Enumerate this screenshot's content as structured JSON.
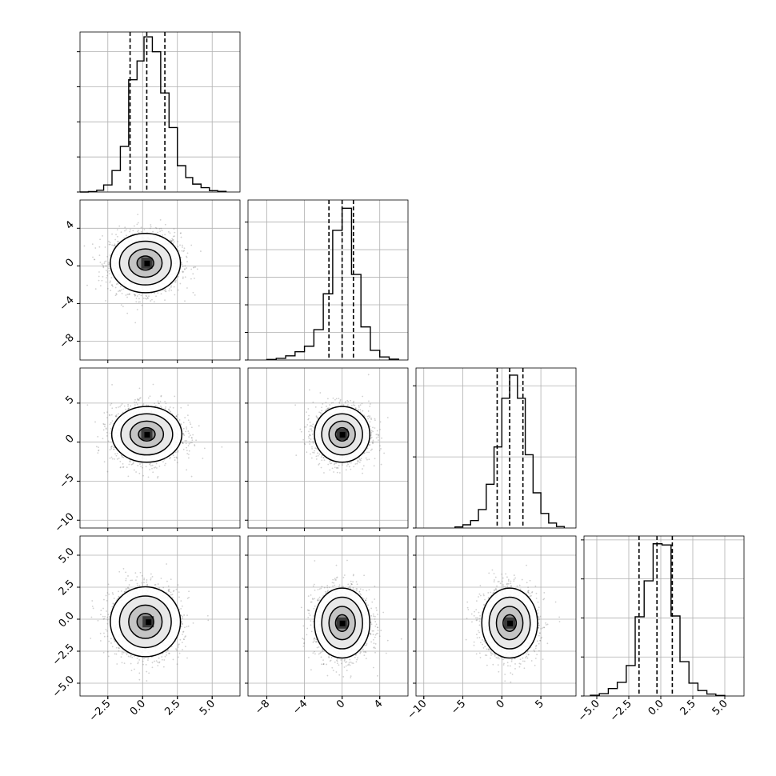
{
  "chart_data": {
    "type": "corner",
    "title": "",
    "grid": true,
    "quantile_lines": [
      0.16,
      0.5,
      0.84
    ],
    "params": [
      {
        "range": [
          -4.5,
          7.0
        ],
        "ticks": [
          -2.5,
          0.0,
          2.5,
          5.0
        ],
        "tick_labels": [
          "−2.5",
          "0.0",
          "2.5",
          "5.0"
        ],
        "quantiles": [
          -0.9,
          0.3,
          1.6
        ],
        "hist_max": 3650,
        "hist_yticks": [
          0,
          800,
          1600,
          2400,
          3200
        ],
        "hist": [
          {
            "x0": -4.5,
            "x1": -3.9,
            "count": 0
          },
          {
            "x0": -3.9,
            "x1": -3.3,
            "count": 10
          },
          {
            "x0": -3.3,
            "x1": -2.8,
            "count": 40
          },
          {
            "x0": -2.8,
            "x1": -2.2,
            "count": 160
          },
          {
            "x0": -2.2,
            "x1": -1.6,
            "count": 490
          },
          {
            "x0": -1.6,
            "x1": -1.0,
            "count": 1040
          },
          {
            "x0": -1.0,
            "x1": -0.4,
            "count": 2560
          },
          {
            "x0": -0.4,
            "x1": 0.1,
            "count": 2990
          },
          {
            "x0": 0.1,
            "x1": 0.7,
            "count": 3540
          },
          {
            "x0": 0.7,
            "x1": 1.3,
            "count": 3200
          },
          {
            "x0": 1.3,
            "x1": 1.9,
            "count": 2260
          },
          {
            "x0": 1.9,
            "x1": 2.5,
            "count": 1470
          },
          {
            "x0": 2.5,
            "x1": 3.1,
            "count": 600
          },
          {
            "x0": 3.1,
            "x1": 3.6,
            "count": 330
          },
          {
            "x0": 3.6,
            "x1": 4.2,
            "count": 180
          },
          {
            "x0": 4.2,
            "x1": 4.8,
            "count": 100
          },
          {
            "x0": 4.8,
            "x1": 5.4,
            "count": 30
          },
          {
            "x0": 5.4,
            "x1": 6.0,
            "count": 15
          }
        ]
      },
      {
        "range": [
          -10.0,
          7.0
        ],
        "ticks": [
          -8,
          -4,
          0,
          4
        ],
        "tick_labels": [
          "−8",
          "−4",
          "0",
          "4"
        ],
        "quantiles": [
          -1.4,
          0.0,
          1.2
        ],
        "hist_max": 5800,
        "hist_yticks": [
          0,
          1000,
          2000,
          3000,
          4000,
          5000
        ],
        "hist": [
          {
            "x0": -8.0,
            "x1": -7.0,
            "count": 20
          },
          {
            "x0": -7.0,
            "x1": -6.0,
            "count": 60
          },
          {
            "x0": -6.0,
            "x1": -5.0,
            "count": 150
          },
          {
            "x0": -5.0,
            "x1": -4.0,
            "count": 300
          },
          {
            "x0": -4.0,
            "x1": -3.0,
            "count": 500
          },
          {
            "x0": -3.0,
            "x1": -2.0,
            "count": 1100
          },
          {
            "x0": -2.0,
            "x1": -1.0,
            "count": 2400
          },
          {
            "x0": -1.0,
            "x1": 0.0,
            "count": 4700
          },
          {
            "x0": 0.0,
            "x1": 1.0,
            "count": 5500
          },
          {
            "x0": 1.0,
            "x1": 2.0,
            "count": 3100
          },
          {
            "x0": 2.0,
            "x1": 3.0,
            "count": 1200
          },
          {
            "x0": 3.0,
            "x1": 4.0,
            "count": 350
          },
          {
            "x0": 4.0,
            "x1": 5.0,
            "count": 110
          },
          {
            "x0": 5.0,
            "x1": 6.0,
            "count": 30
          }
        ]
      },
      {
        "range": [
          -11.0,
          9.5
        ],
        "ticks": [
          -10,
          -5,
          0,
          5
        ],
        "tick_labels": [
          "−10",
          "−5",
          "0",
          "5"
        ],
        "quantiles": [
          -0.6,
          1.0,
          2.7
        ],
        "hist_max": 4500,
        "hist_yticks": [
          0,
          2000,
          4000
        ],
        "hist": [
          {
            "x0": -6.0,
            "x1": -5.0,
            "count": 30
          },
          {
            "x0": -5.0,
            "x1": -4.0,
            "count": 90
          },
          {
            "x0": -4.0,
            "x1": -3.0,
            "count": 210
          },
          {
            "x0": -3.0,
            "x1": -2.0,
            "count": 520
          },
          {
            "x0": -2.0,
            "x1": -1.0,
            "count": 1230
          },
          {
            "x0": -1.0,
            "x1": 0.0,
            "count": 2280
          },
          {
            "x0": 0.0,
            "x1": 1.0,
            "count": 3650
          },
          {
            "x0": 1.0,
            "x1": 2.0,
            "count": 4300
          },
          {
            "x0": 2.0,
            "x1": 3.0,
            "count": 3650
          },
          {
            "x0": 3.0,
            "x1": 4.0,
            "count": 2060
          },
          {
            "x0": 4.0,
            "x1": 5.0,
            "count": 990
          },
          {
            "x0": 5.0,
            "x1": 6.0,
            "count": 410
          },
          {
            "x0": 6.0,
            "x1": 7.0,
            "count": 140
          },
          {
            "x0": 7.0,
            "x1": 8.0,
            "count": 40
          }
        ]
      },
      {
        "range": [
          -6.0,
          6.5
        ],
        "ticks": [
          -5.0,
          -2.5,
          0.0,
          2.5,
          5.0
        ],
        "tick_labels": [
          "−5.0",
          "−2.5",
          "0.0",
          "2.5",
          "5.0"
        ],
        "quantiles": [
          -1.7,
          -0.3,
          0.9
        ],
        "hist_max": 4100,
        "hist_yticks": [
          0,
          1000,
          2000,
          3000,
          4000
        ],
        "hist": [
          {
            "x0": -5.5,
            "x1": -4.8,
            "count": 20
          },
          {
            "x0": -4.8,
            "x1": -4.1,
            "count": 60
          },
          {
            "x0": -4.1,
            "x1": -3.4,
            "count": 190
          },
          {
            "x0": -3.4,
            "x1": -2.7,
            "count": 350
          },
          {
            "x0": -2.7,
            "x1": -2.0,
            "count": 780
          },
          {
            "x0": -2.0,
            "x1": -1.3,
            "count": 2030
          },
          {
            "x0": -1.3,
            "x1": -0.6,
            "count": 2950
          },
          {
            "x0": -0.6,
            "x1": 0.1,
            "count": 3900
          },
          {
            "x0": 0.1,
            "x1": 0.8,
            "count": 3870
          },
          {
            "x0": 0.8,
            "x1": 1.5,
            "count": 2050
          },
          {
            "x0": 1.5,
            "x1": 2.2,
            "count": 880
          },
          {
            "x0": 2.2,
            "x1": 2.9,
            "count": 330
          },
          {
            "x0": 2.9,
            "x1": 3.6,
            "count": 140
          },
          {
            "x0": 3.6,
            "x1": 4.3,
            "count": 50
          },
          {
            "x0": 4.3,
            "x1": 5.0,
            "count": 15
          }
        ]
      }
    ],
    "pairs": [
      {
        "row": 1,
        "col": 0,
        "center": [
          0.2,
          0.3
        ],
        "sigma": [
          1.2,
          1.5
        ],
        "density_peak": [
          0.3,
          0.3
        ]
      },
      {
        "row": 2,
        "col": 0,
        "center": [
          0.3,
          1.0
        ],
        "sigma": [
          1.2,
          1.7
        ],
        "density_peak": [
          0.3,
          1.0
        ]
      },
      {
        "row": 3,
        "col": 0,
        "center": [
          0.2,
          -0.2
        ],
        "sigma": [
          1.2,
          1.3
        ],
        "density_peak": [
          0.4,
          -0.2
        ]
      },
      {
        "row": 2,
        "col": 1,
        "center": [
          0.0,
          1.0
        ],
        "sigma": [
          1.4,
          1.7
        ],
        "density_peak": [
          0.0,
          1.0
        ]
      },
      {
        "row": 3,
        "col": 1,
        "center": [
          0.0,
          -0.3
        ],
        "sigma": [
          1.4,
          1.3
        ],
        "density_peak": [
          0.0,
          -0.3
        ]
      },
      {
        "row": 3,
        "col": 2,
        "center": [
          1.0,
          -0.3
        ],
        "sigma": [
          1.7,
          1.3
        ],
        "density_peak": [
          1.0,
          -0.3
        ]
      }
    ]
  }
}
